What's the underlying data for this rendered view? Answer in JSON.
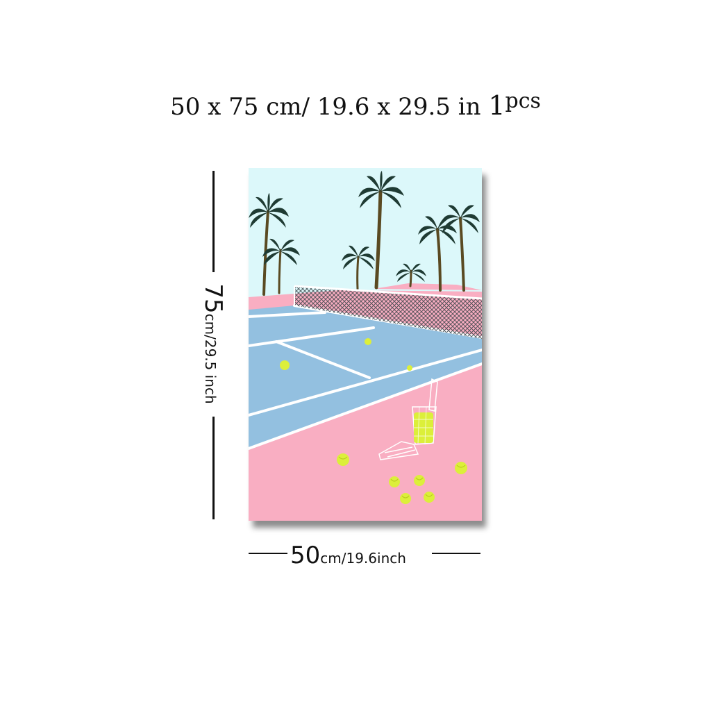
{
  "headline": {
    "size": "50 x 75 cm/ 19.6  x  29.5 in",
    "quantity": "1",
    "unit": "pcs"
  },
  "height_label": {
    "value": "75",
    "unit": "cm/29.5 inch"
  },
  "width_label": {
    "value": "50",
    "unit": "cm/19.6inch"
  },
  "poster": {
    "artwork": "tennis-court-palm-trees-artwork",
    "colors": {
      "sky": "#dcf8fa",
      "court_blue": "#93c0e0",
      "court_pink": "#f9aec2",
      "lines": "#ffffff",
      "palm": "#1f3b33",
      "trunk": "#5a4a22",
      "ball": "#dcef3a"
    }
  }
}
